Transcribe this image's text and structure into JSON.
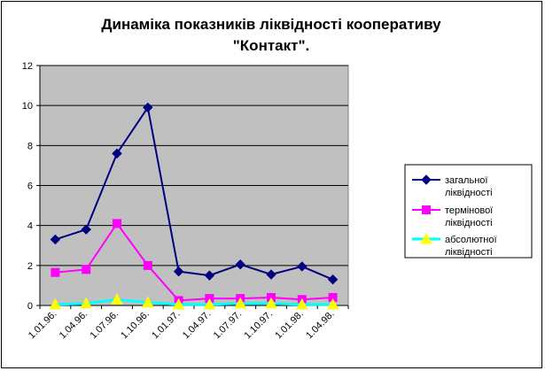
{
  "chart_data": {
    "type": "line",
    "title_lines": [
      "Динаміка показників ліквідності кооперативу",
      "\"Контакт\"."
    ],
    "xlabel": "",
    "ylabel": "",
    "categories": [
      "1.01.96.",
      "1.04.96.",
      "1.07.96.",
      "1.10.96.",
      "1.01.97.",
      "1.04.97.",
      "1.07.97.",
      "1.10.97.",
      "1.01.98.",
      "1.04.98."
    ],
    "ylim": [
      0,
      12
    ],
    "yticks": [
      0,
      2,
      4,
      6,
      8,
      10,
      12
    ],
    "grid": true,
    "plot_background": "#c0c0c0",
    "legend_position": "right",
    "series": [
      {
        "name_lines": [
          "загальної",
          "ліквідності"
        ],
        "color": "#000080",
        "marker": "diamond",
        "values": [
          3.3,
          3.8,
          7.6,
          9.9,
          1.7,
          1.5,
          2.05,
          1.55,
          1.95,
          1.3
        ]
      },
      {
        "name_lines": [
          "термінової",
          "ліквідності"
        ],
        "color": "#ff00ff",
        "marker": "square",
        "values": [
          1.65,
          1.8,
          4.1,
          2.0,
          0.25,
          0.35,
          0.35,
          0.4,
          0.3,
          0.4
        ]
      },
      {
        "name_lines": [
          "абсолютної",
          "ліквідності"
        ],
        "color": "#00ffff",
        "marker": "triangle",
        "marker_color": "#ffff00",
        "values": [
          0.05,
          0.1,
          0.3,
          0.15,
          0.05,
          0.05,
          0.1,
          0.1,
          0.05,
          0.05
        ]
      }
    ]
  }
}
